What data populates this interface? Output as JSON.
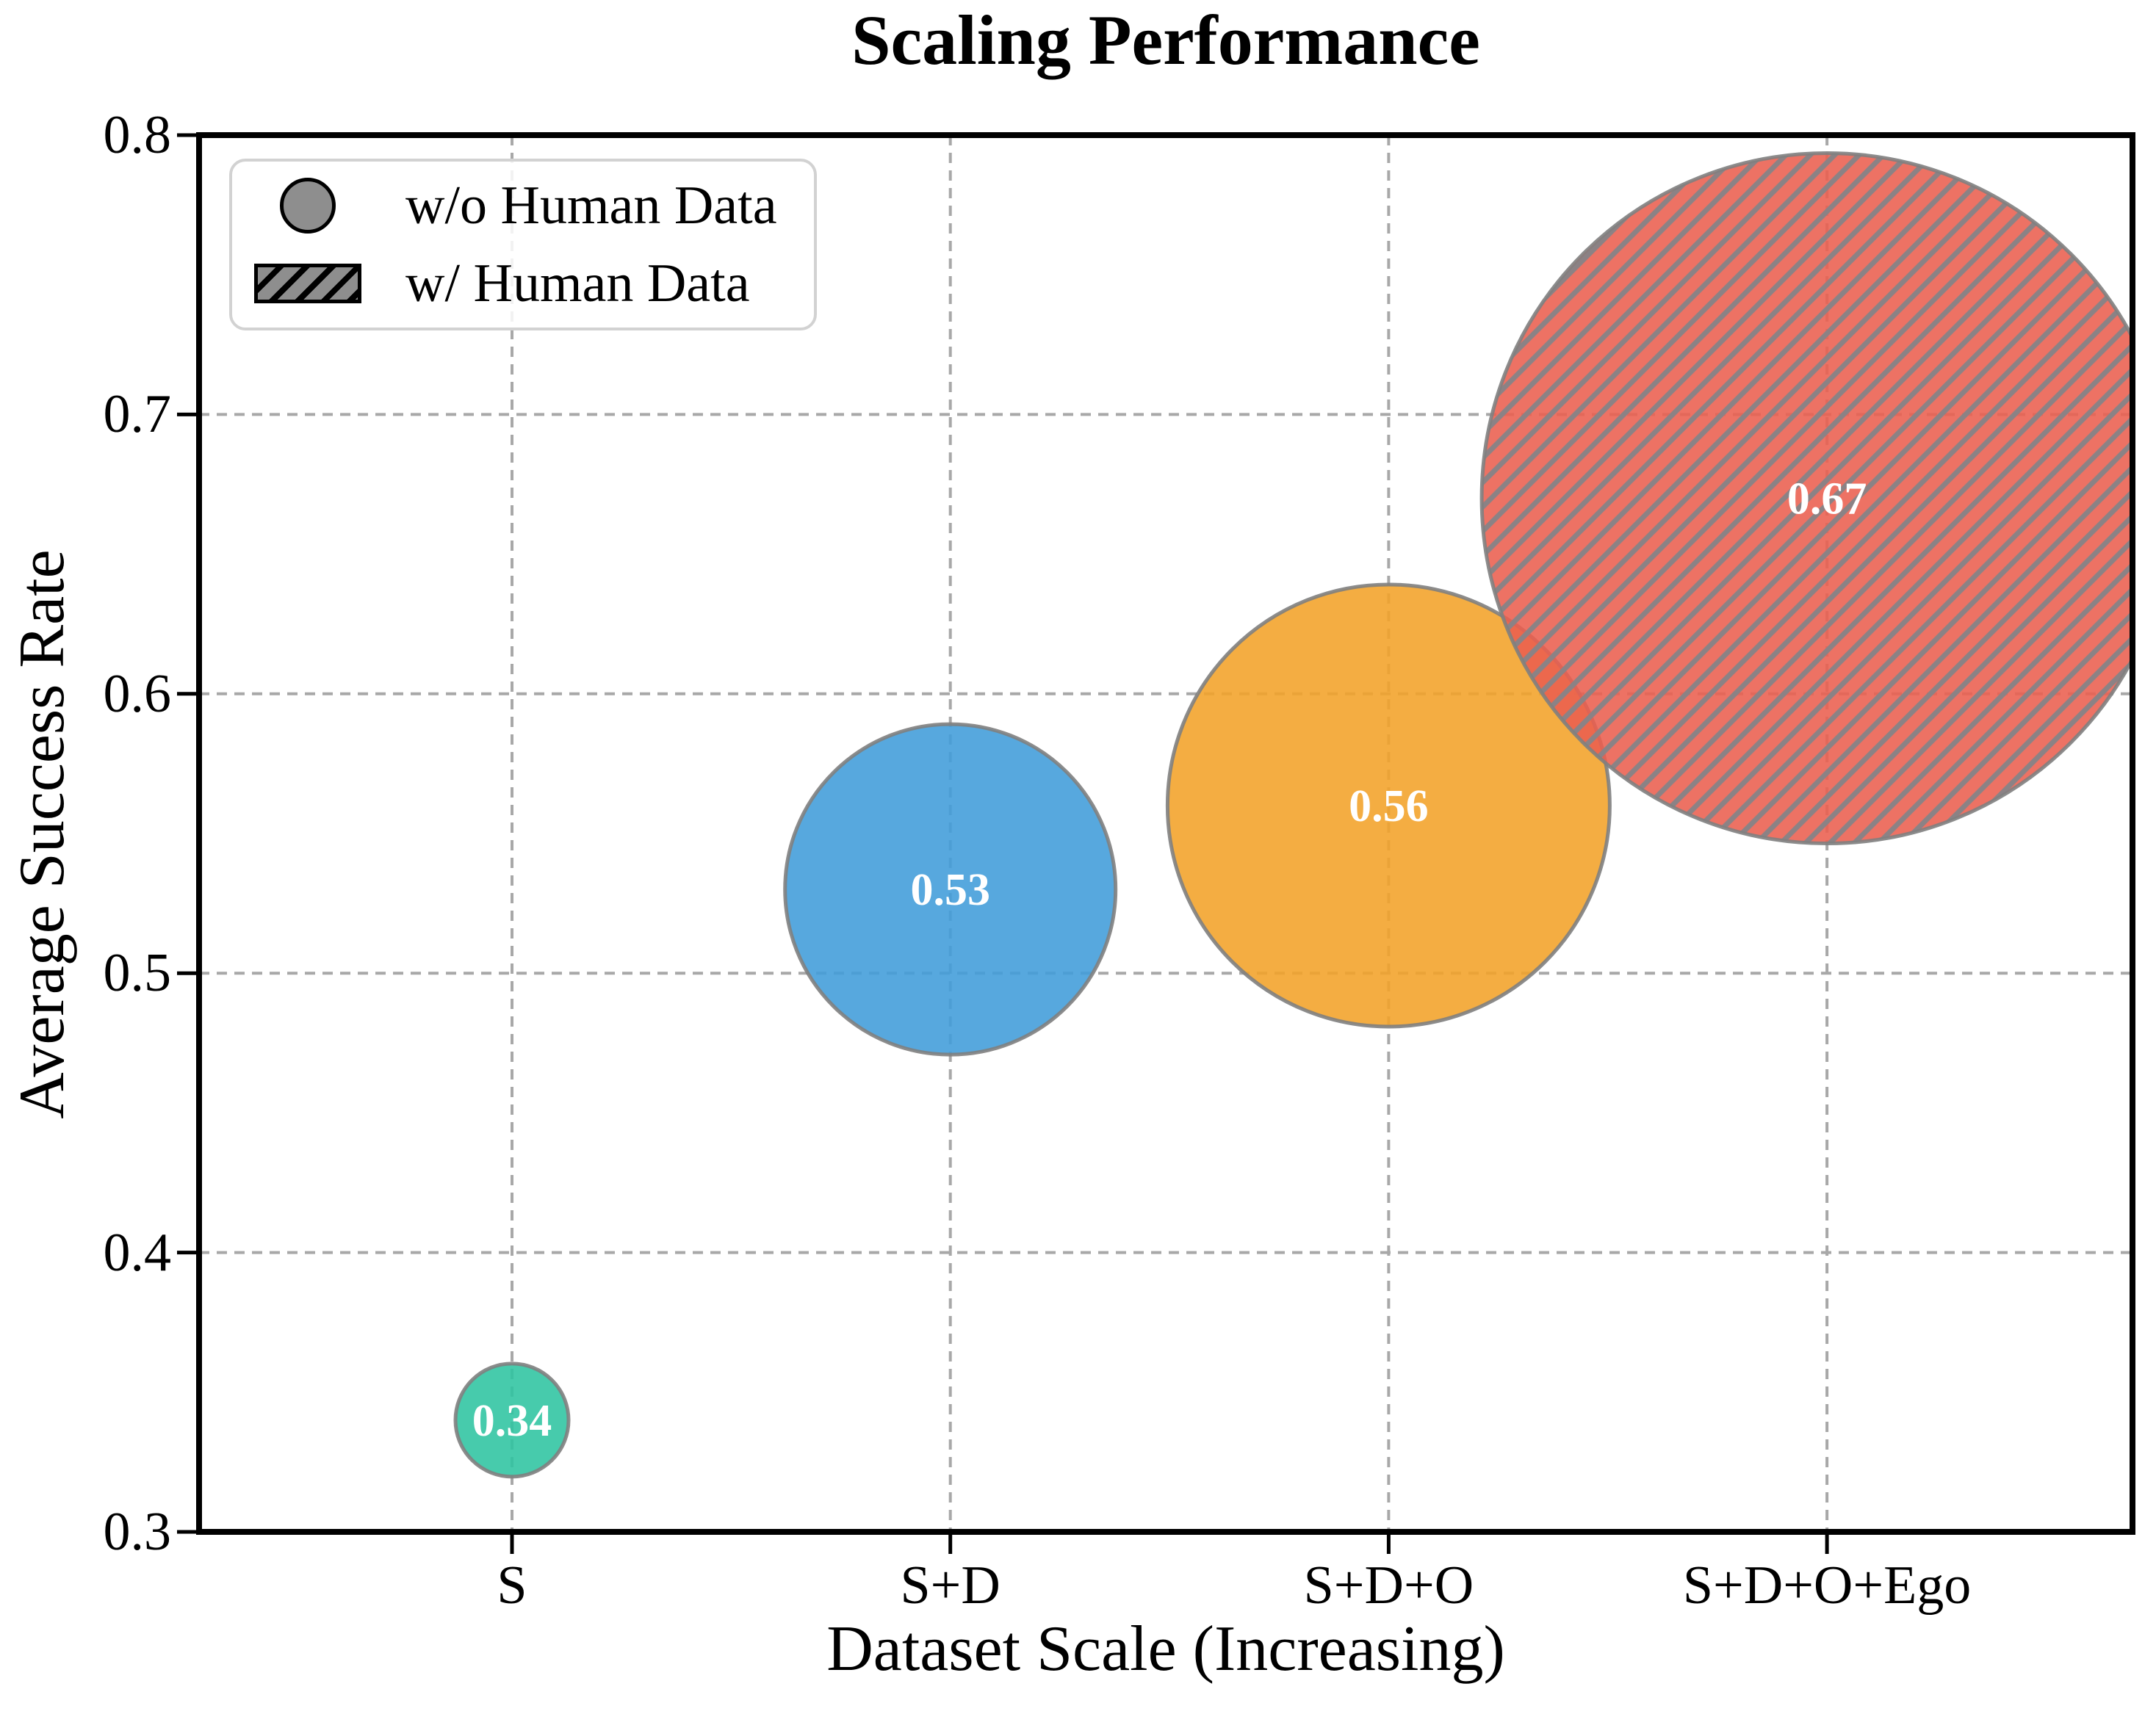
{
  "title": "Scaling Performance",
  "legend": {
    "items": [
      {
        "label": "w/o Human Data",
        "marker": "solid-circle"
      },
      {
        "label": "w/ Human Data",
        "marker": "hatched-rect"
      }
    ]
  },
  "chart_data": {
    "type": "scatter",
    "title": "Scaling Performance",
    "xlabel": "Dataset Scale (Increasing)",
    "ylabel": "Average Success Rate",
    "categories": [
      "S",
      "S+D",
      "S+D+O",
      "S+D+O+Ego"
    ],
    "ylim": [
      0.3,
      0.8
    ],
    "y_ticks": [
      0.3,
      0.4,
      0.5,
      0.6,
      0.7,
      0.8
    ],
    "y_tick_labels": [
      "0.3",
      "0.4",
      "0.5",
      "0.6",
      "0.7",
      "0.8"
    ],
    "grid": true,
    "grid_style": "dashed",
    "legend_position": "upper left",
    "points": [
      {
        "category": "S",
        "value": 0.34,
        "label": "0.34",
        "color": "#2ec4a0",
        "hatched": false,
        "radius_px": 77
      },
      {
        "category": "S+D",
        "value": 0.53,
        "label": "0.53",
        "color": "#409cd9",
        "hatched": false,
        "radius_px": 225
      },
      {
        "category": "S+D+O",
        "value": 0.56,
        "label": "0.56",
        "color": "#f2a228",
        "hatched": false,
        "radius_px": 301
      },
      {
        "category": "S+D+O+Ego",
        "value": 0.67,
        "label": "0.67",
        "color": "#eb5e4f",
        "hatched": true,
        "radius_px": 470
      }
    ],
    "colors": {
      "bubble_edge": "#808080",
      "hatch": "#8b8285",
      "gridline": "#a8a8a8",
      "spine": "#000000",
      "value_label": "#ffffff"
    }
  }
}
